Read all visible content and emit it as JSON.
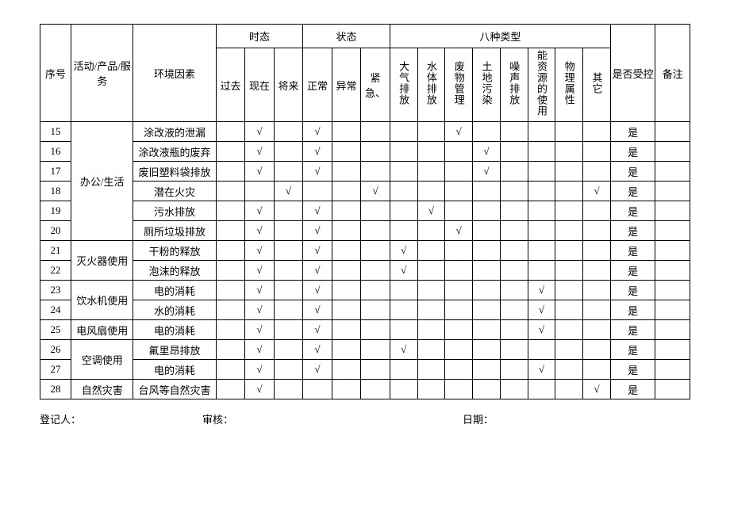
{
  "header": {
    "seq": "序号",
    "activity": "活动/产品/服务",
    "factor": "环境因素",
    "tense_group": "时态",
    "tense": {
      "past": "过去",
      "present": "现在",
      "future": "将来"
    },
    "state_group": "状态",
    "state": {
      "normal": "正常",
      "abnormal": "异常",
      "emergency": "紧急、"
    },
    "types_group": "八种类型",
    "types": {
      "air": "大气排放",
      "water": "水体排放",
      "waste": "废物管理",
      "land": "土地污染",
      "noise": "噪声排放",
      "energy": "能资源的使用",
      "physical": "物理属性",
      "other": "其它"
    },
    "controlled": "是否受控",
    "remark": "备注"
  },
  "groups": [
    {
      "activity": "办公/生活",
      "rows": [
        15,
        16,
        17,
        18,
        19,
        20
      ]
    },
    {
      "activity": "灭火器使用",
      "rows": [
        21,
        22
      ]
    },
    {
      "activity": "饮水机使用",
      "rows": [
        23,
        24
      ]
    },
    {
      "activity": "电风扇使用",
      "rows": [
        25
      ]
    },
    {
      "activity": "空调使用",
      "rows": [
        26,
        27
      ]
    },
    {
      "activity": "自然灾害",
      "rows": [
        28
      ]
    }
  ],
  "rows": {
    "15": {
      "factor": "涂改液的泄漏",
      "present": "√",
      "normal": "√",
      "waste": "√",
      "controlled": "是"
    },
    "16": {
      "factor": "涂改液瓶的废弃",
      "present": "√",
      "normal": "√",
      "land": "√",
      "controlled": "是"
    },
    "17": {
      "factor": "废旧塑料袋排放",
      "present": "√",
      "normal": "√",
      "land": "√",
      "controlled": "是"
    },
    "18": {
      "factor": "潜在火灾",
      "future": "√",
      "emergency": "√",
      "other": "√",
      "controlled": "是"
    },
    "19": {
      "factor": "污水排放",
      "present": "√",
      "normal": "√",
      "water": "√",
      "controlled": "是"
    },
    "20": {
      "factor": "厕所垃圾排放",
      "present": "√",
      "normal": "√",
      "waste": "√",
      "controlled": "是"
    },
    "21": {
      "factor": "干粉的释放",
      "present": "√",
      "normal": "√",
      "air": "√",
      "controlled": "是"
    },
    "22": {
      "factor": "泡沫的释放",
      "present": "√",
      "normal": "√",
      "air": "√",
      "controlled": "是"
    },
    "23": {
      "factor": "电的消耗",
      "present": "√",
      "normal": "√",
      "energy": "√",
      "controlled": "是"
    },
    "24": {
      "factor": "水的消耗",
      "present": "√",
      "normal": "√",
      "energy": "√",
      "controlled": "是"
    },
    "25": {
      "factor": "电的消耗",
      "present": "√",
      "normal": "√",
      "energy": "√",
      "controlled": "是"
    },
    "26": {
      "factor": "氟里昂排放",
      "present": "√",
      "normal": "√",
      "air": "√",
      "controlled": "是"
    },
    "27": {
      "factor": "电的消耗",
      "present": "√",
      "normal": "√",
      "energy": "√",
      "controlled": "是"
    },
    "28": {
      "factor": "台风等自然灾害",
      "present": "√",
      "other": "√",
      "controlled": "是"
    }
  },
  "footer": {
    "registrar": "登记人：",
    "reviewer": "审核：",
    "date": "日期："
  },
  "colwidths": {
    "seq": "4.5%",
    "activity": "9%",
    "factor": "12%",
    "past": "4.2%",
    "present": "4.2%",
    "future": "4.2%",
    "normal": "4.2%",
    "abnormal": "4.2%",
    "emergency": "4.2%",
    "air": "4%",
    "water": "4%",
    "waste": "4%",
    "land": "4%",
    "noise": "4%",
    "energy": "4%",
    "physical": "4%",
    "other": "4%",
    "controlled": "6.5%",
    "remark": "5%"
  }
}
